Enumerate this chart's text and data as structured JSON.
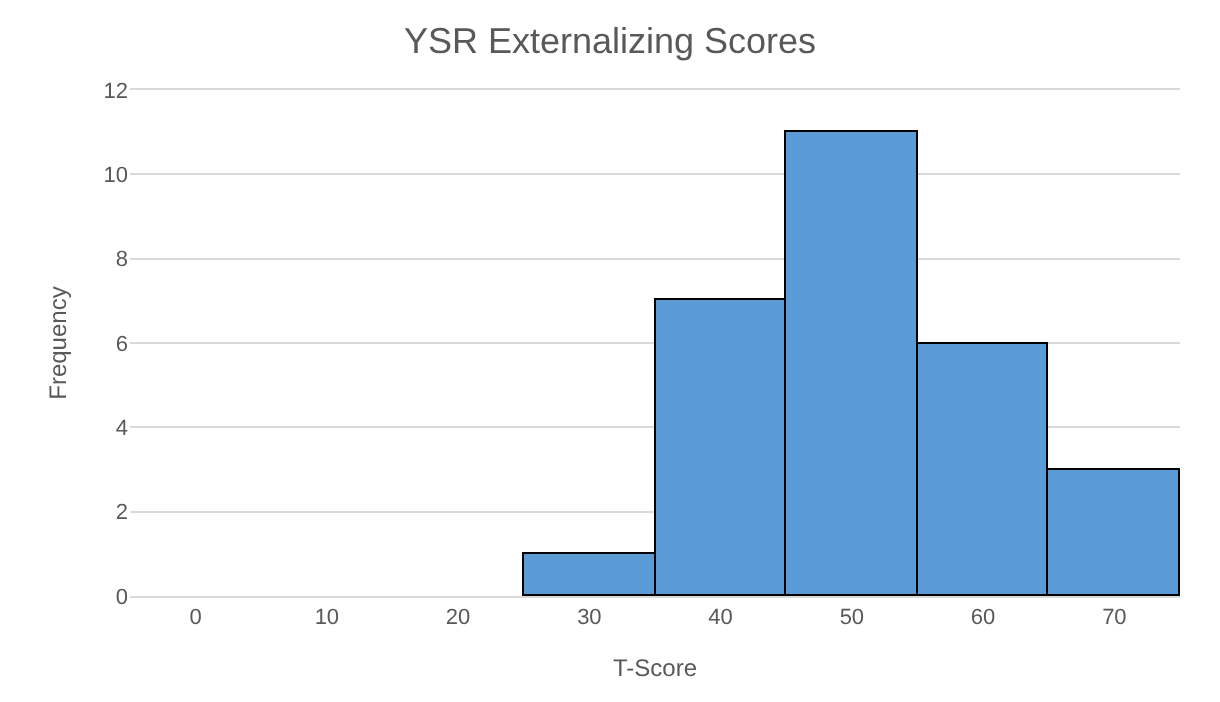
{
  "chart_data": {
    "type": "histogram",
    "title": "YSR Externalizing Scores",
    "xlabel": "T-Score",
    "ylabel": "Frequency",
    "bins": [
      -5,
      5,
      15,
      25,
      35,
      45,
      55,
      65,
      75
    ],
    "values": [
      0,
      0,
      0,
      1,
      7,
      11,
      6,
      3
    ],
    "color": "#5b9bd5",
    "xlim": [
      -5,
      75
    ],
    "xticks": [
      0,
      10,
      20,
      30,
      40,
      50,
      60,
      70
    ],
    "ylim": [
      0,
      12
    ],
    "yticks": [
      0,
      2,
      4,
      6,
      8,
      10,
      12
    ],
    "grid": "y",
    "legend": false
  }
}
